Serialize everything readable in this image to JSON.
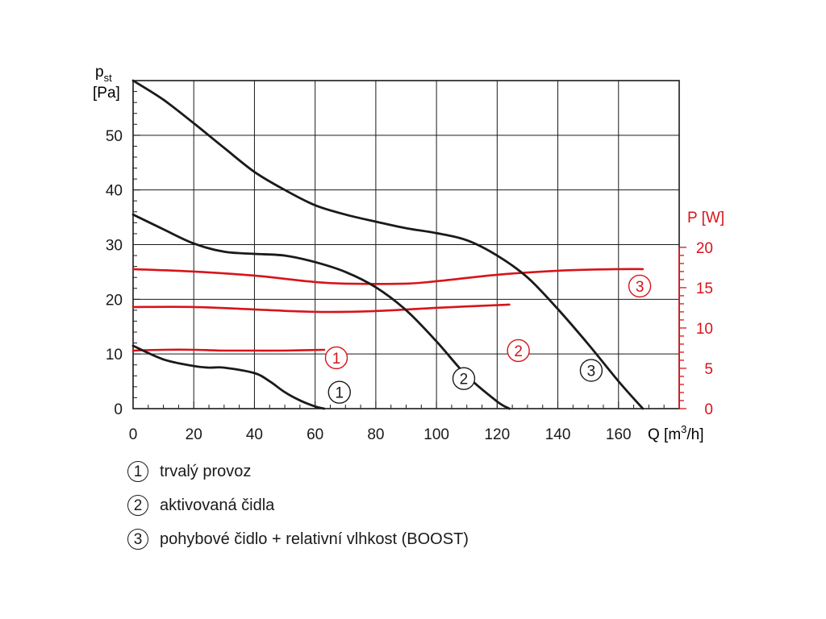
{
  "chart_data": {
    "type": "line",
    "title": "",
    "x_axis": {
      "label": "Q [m³/h]",
      "label_prefix": "Q [m",
      "label_sup": "3",
      "label_suffix": "/h]",
      "range": [
        0,
        180
      ],
      "ticks": [
        0,
        20,
        40,
        60,
        80,
        100,
        120,
        140,
        160
      ]
    },
    "y_left": {
      "label_line1_base": "p",
      "label_line1_sub": "st",
      "label_line2": "[Pa]",
      "range": [
        0,
        60
      ],
      "ticks": [
        0,
        10,
        20,
        30,
        40,
        50
      ]
    },
    "y_right": {
      "label": "P [W]",
      "range": [
        0,
        20
      ],
      "ticks": [
        0,
        5,
        10,
        15,
        20
      ],
      "color": "#d7141a"
    },
    "grid": true,
    "colors": {
      "pressure": "#1a1a1a",
      "power": "#d7141a"
    },
    "pressure_series": [
      {
        "name": "1",
        "label": "①",
        "x": [
          0,
          10,
          20,
          25,
          30,
          40,
          45,
          50,
          55,
          60,
          63
        ],
        "y": [
          11.5,
          9,
          7.8,
          7.5,
          7.5,
          6.5,
          5,
          3,
          1.5,
          0.4,
          0
        ]
      },
      {
        "name": "2",
        "label": "②",
        "x": [
          0,
          10,
          20,
          30,
          40,
          50,
          60,
          70,
          80,
          90,
          100,
          110,
          120,
          124
        ],
        "y": [
          35.5,
          32.8,
          30.2,
          28.7,
          28.3,
          28,
          26.8,
          25,
          22.2,
          18,
          12.3,
          6,
          1.3,
          0
        ]
      },
      {
        "name": "3",
        "label": "③",
        "x": [
          0,
          10,
          20,
          30,
          40,
          50,
          60,
          70,
          80,
          90,
          100,
          110,
          120,
          130,
          140,
          150,
          160,
          168
        ],
        "y": [
          60,
          56.5,
          52.2,
          47.7,
          43.3,
          40,
          37.2,
          35.5,
          34.2,
          33,
          32.1,
          30.8,
          28,
          24,
          18.2,
          11.8,
          5,
          0
        ]
      }
    ],
    "power_series": [
      {
        "name": "1",
        "label": "①",
        "x": [
          0,
          10,
          20,
          30,
          40,
          50,
          63
        ],
        "y": [
          7.2,
          7.3,
          7.3,
          7.2,
          7.2,
          7.2,
          7.3
        ]
      },
      {
        "name": "2",
        "label": "②",
        "x": [
          0,
          20,
          40,
          60,
          80,
          100,
          124
        ],
        "y": [
          12.6,
          12.6,
          12.3,
          12.0,
          12.1,
          12.5,
          12.9
        ]
      },
      {
        "name": "3",
        "label": "③",
        "x": [
          0,
          20,
          40,
          50,
          60,
          70,
          90,
          100,
          120,
          140,
          160,
          168
        ],
        "y": [
          17.3,
          17.0,
          16.5,
          16.1,
          15.7,
          15.5,
          15.5,
          15.8,
          16.6,
          17.1,
          17.3,
          17.3
        ]
      }
    ],
    "legend": [
      {
        "num": "1",
        "label": "trvalý provoz"
      },
      {
        "num": "2",
        "label": "aktivovaná čidla"
      },
      {
        "num": "3",
        "label": "pohybové čidlo + relativní vlhkost (BOOST)"
      }
    ]
  }
}
